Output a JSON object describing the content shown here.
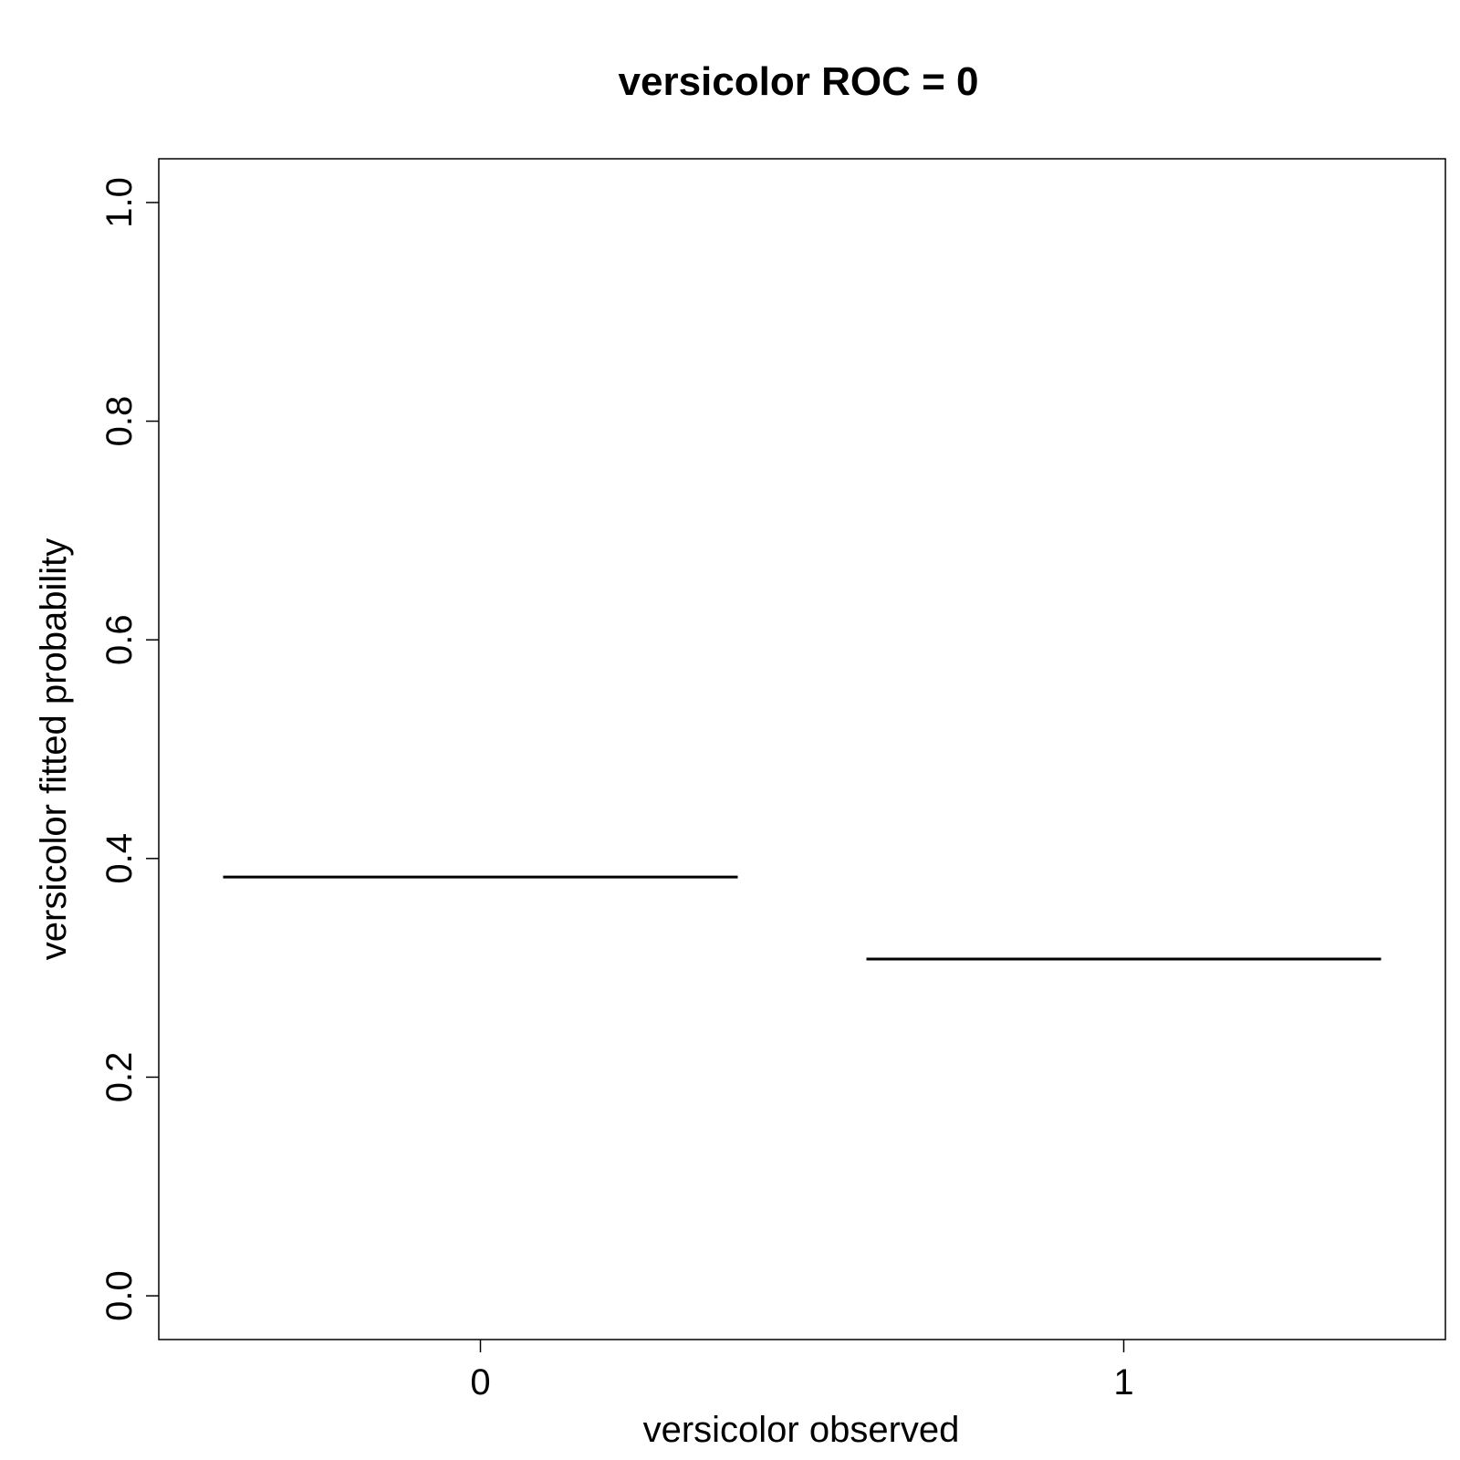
{
  "chart_data": {
    "type": "boxplot",
    "title": "versicolor ROC = 0",
    "xlabel": "versicolor observed",
    "ylabel": "versicolor fitted probability",
    "categories": [
      "0",
      "1"
    ],
    "values": [
      0.383,
      0.308
    ],
    "ylim": [
      -0.04,
      1.04
    ],
    "yticks": [
      "0.0",
      "0.2",
      "0.4",
      "0.6",
      "0.8",
      "1.0"
    ],
    "grid": false,
    "line_color": "#000000"
  }
}
